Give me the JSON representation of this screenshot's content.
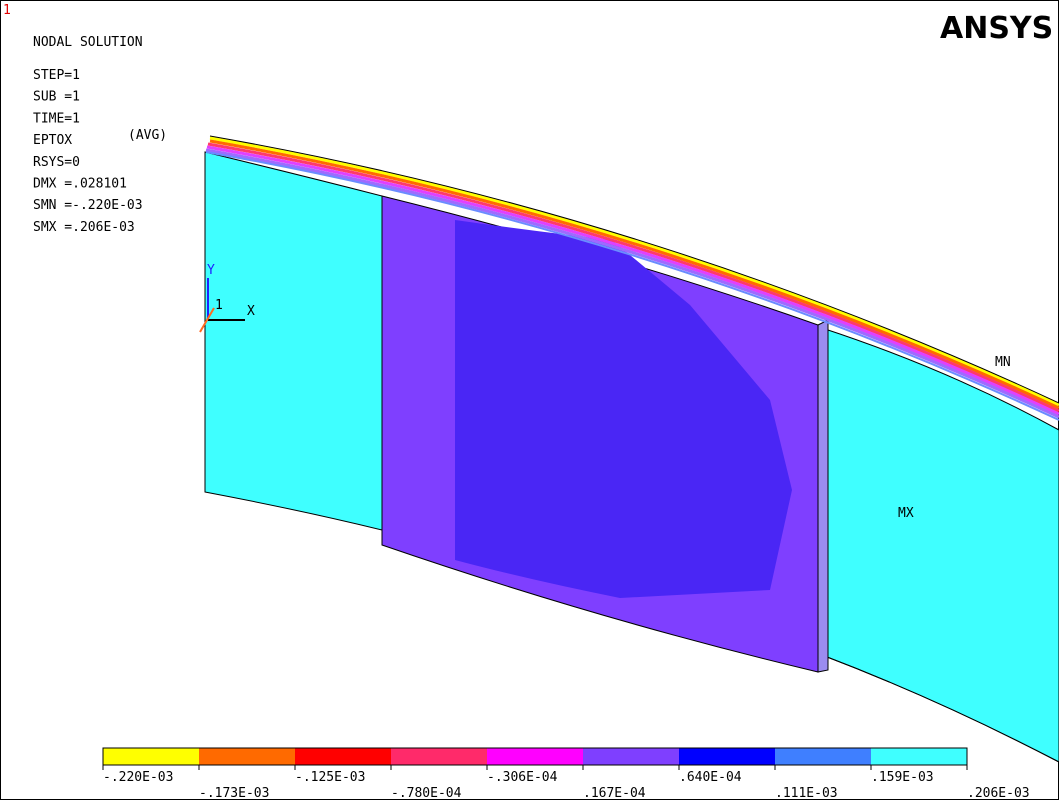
{
  "window_number": "1",
  "logo": "ANSYS",
  "title": "NODAL SOLUTION",
  "info": [
    "STEP=1",
    "SUB =1",
    "TIME=1",
    "EPTOX",
    "RSYS=0",
    "DMX =.028101",
    "SMN =-.220E-03",
    "SMX =.206E-03"
  ],
  "avg_note": "(AVG)",
  "triad": {
    "y": "Y",
    "x": "X",
    "id": "1"
  },
  "markers": {
    "max": "MX",
    "min": "MN"
  },
  "legend": {
    "labels": [
      "-.220E-03",
      "-.173E-03",
      "-.125E-03",
      "-.780E-04",
      "-.306E-04",
      ".167E-04",
      ".640E-04",
      ".111E-03",
      ".159E-03",
      ".206E-03"
    ]
  }
}
